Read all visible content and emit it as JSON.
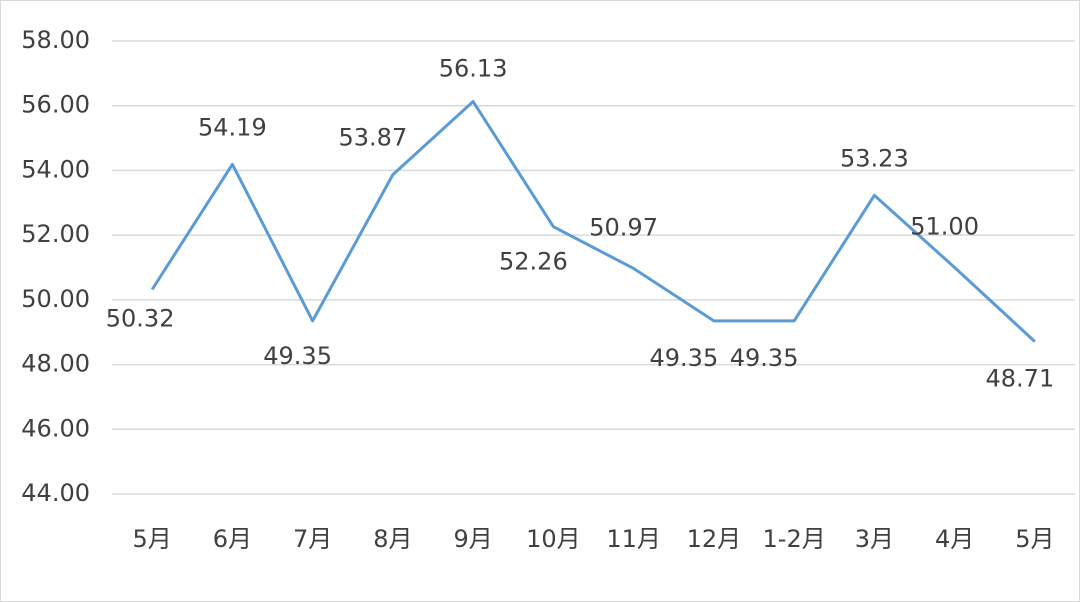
{
  "chart_data": {
    "type": "line",
    "categories": [
      "5月",
      "6月",
      "7月",
      "8月",
      "9月",
      "10月",
      "11月",
      "12月",
      "1-2月",
      "3月",
      "4月",
      "5月"
    ],
    "series": [
      {
        "name": null,
        "color": "#5b9bd5",
        "values": [
          50.32,
          54.19,
          49.35,
          53.87,
          56.13,
          52.26,
          50.97,
          49.35,
          49.35,
          53.23,
          51.0,
          48.71
        ],
        "value_labels": [
          "50.32",
          "54.19",
          "49.35",
          "53.87",
          "56.13",
          "52.26",
          "50.97",
          "49.35",
          "49.35",
          "53.23",
          "51.00",
          "48.71"
        ]
      }
    ],
    "ylim": [
      44,
      58
    ],
    "yticks": [
      {
        "value": 44,
        "label": "44.00"
      },
      {
        "value": 46,
        "label": "46.00"
      },
      {
        "value": 48,
        "label": "48.00"
      },
      {
        "value": 50,
        "label": "50.00"
      },
      {
        "value": 52,
        "label": "52.00"
      },
      {
        "value": 54,
        "label": "54.00"
      },
      {
        "value": 56,
        "label": "56.00"
      },
      {
        "value": 58,
        "label": "58.00"
      }
    ],
    "grid": true
  }
}
